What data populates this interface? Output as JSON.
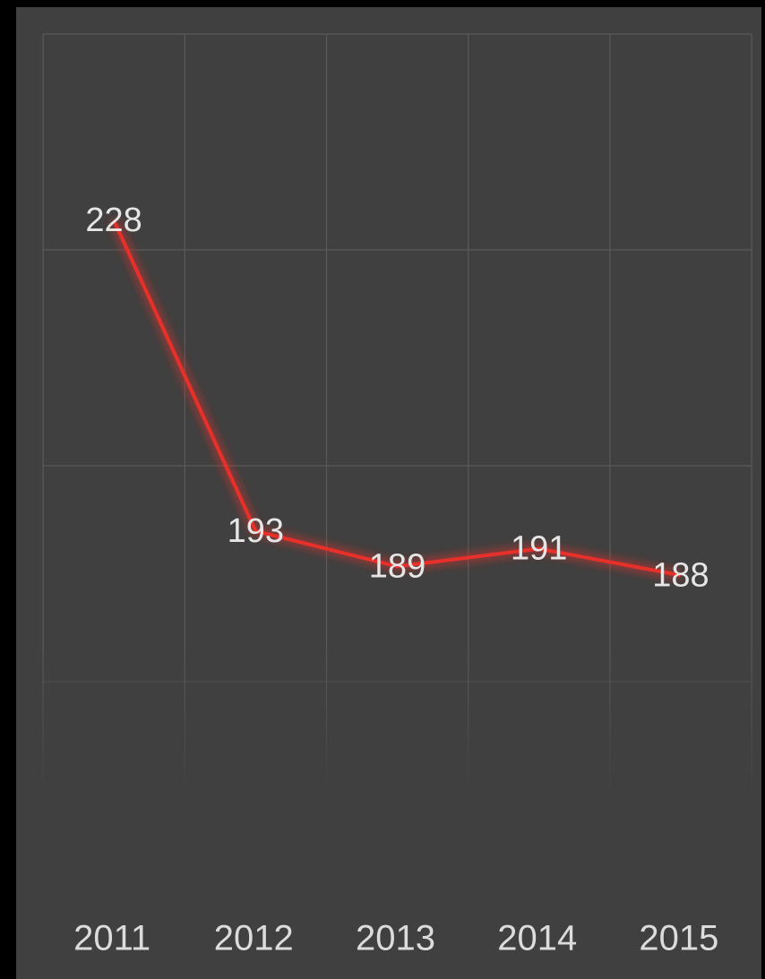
{
  "chart_data": {
    "type": "line",
    "categories": [
      "2011",
      "2012",
      "2013",
      "2014",
      "2015"
    ],
    "series": [
      {
        "color": "#e8302a",
        "values": [
          228,
          193,
          189,
          191,
          188
        ]
      }
    ],
    "ylim": [
      163,
      249
    ],
    "grid": true
  }
}
